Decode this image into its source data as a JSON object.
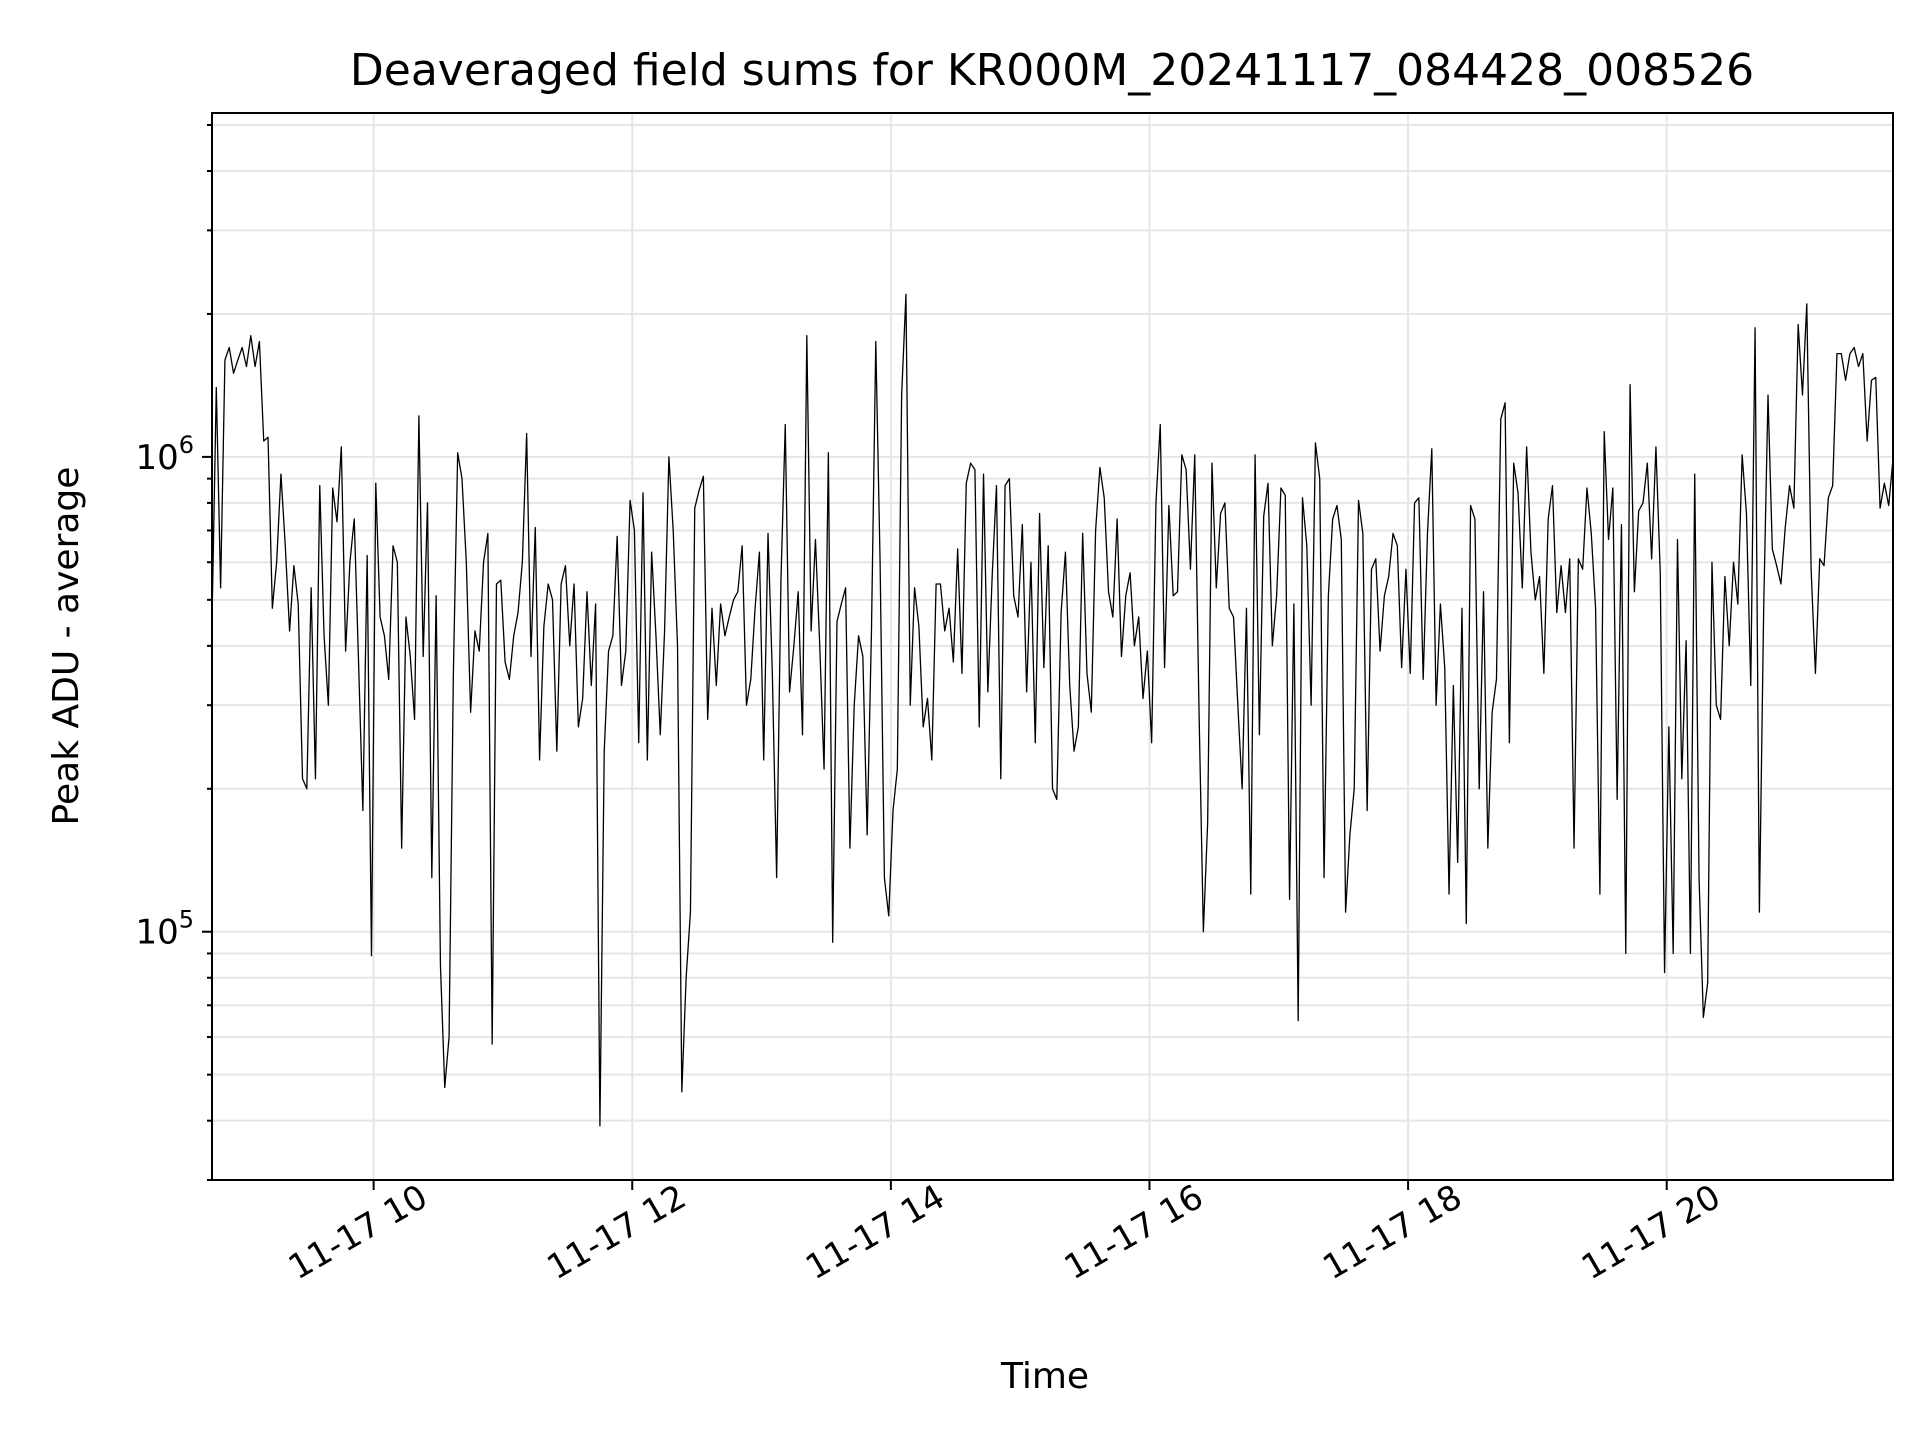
{
  "chart_data": {
    "type": "line",
    "title": "Deaveraged field sums for KR000M_20241117_084428_008526",
    "xlabel": "Time",
    "ylabel": "Peak ADU - average",
    "yscale": "log",
    "xlim": [
      "2024-11-17T08:45",
      "2024-11-17T21:45"
    ],
    "ylim": [
      30000,
      5300000
    ],
    "grid": true,
    "line_color": "#000000",
    "x_ticks": [
      {
        "value": "2024-11-17T10:00",
        "label": "11-17 10"
      },
      {
        "value": "2024-11-17T12:00",
        "label": "11-17 12"
      },
      {
        "value": "2024-11-17T14:00",
        "label": "11-17 14"
      },
      {
        "value": "2024-11-17T16:00",
        "label": "11-17 16"
      },
      {
        "value": "2024-11-17T18:00",
        "label": "11-17 18"
      },
      {
        "value": "2024-11-17T20:00",
        "label": "11-17 20"
      }
    ],
    "y_ticks": [
      {
        "value": 100000,
        "base": "10",
        "exp": "5"
      },
      {
        "value": 1000000,
        "base": "10",
        "exp": "6"
      }
    ],
    "series": [
      {
        "x_start": "2024-11-17T08:45",
        "x_end": "2024-11-17T21:45",
        "values": [
          450000,
          1400000,
          530000,
          1600000,
          1700000,
          1500000,
          1600000,
          1700000,
          1550000,
          1800000,
          1550000,
          1750000,
          1080000,
          1100000,
          480000,
          600000,
          920000,
          650000,
          430000,
          590000,
          490000,
          210000,
          200000,
          530000,
          210000,
          870000,
          420000,
          300000,
          860000,
          730000,
          1050000,
          390000,
          600000,
          740000,
          370000,
          180000,
          620000,
          89000,
          880000,
          460000,
          420000,
          340000,
          650000,
          600000,
          150000,
          460000,
          380000,
          280000,
          1220000,
          380000,
          800000,
          130000,
          510000,
          85000,
          47000,
          60000,
          350000,
          1020000,
          900000,
          600000,
          290000,
          430000,
          390000,
          600000,
          690000,
          58000,
          540000,
          550000,
          370000,
          340000,
          420000,
          470000,
          600000,
          1120000,
          380000,
          710000,
          230000,
          440000,
          540000,
          500000,
          240000,
          540000,
          590000,
          400000,
          540000,
          270000,
          310000,
          520000,
          330000,
          490000,
          39000,
          240000,
          390000,
          420000,
          680000,
          330000,
          390000,
          810000,
          700000,
          250000,
          840000,
          230000,
          630000,
          420000,
          260000,
          430000,
          1000000,
          700000,
          400000,
          46000,
          80000,
          110000,
          780000,
          850000,
          910000,
          280000,
          480000,
          330000,
          490000,
          420000,
          460000,
          500000,
          520000,
          650000,
          300000,
          340000,
          480000,
          630000,
          230000,
          690000,
          350000,
          130000,
          550000,
          1170000,
          320000,
          400000,
          520000,
          260000,
          1800000,
          430000,
          670000,
          400000,
          220000,
          1020000,
          95000,
          450000,
          490000,
          530000,
          150000,
          300000,
          420000,
          380000,
          160000,
          430000,
          1750000,
          600000,
          130000,
          108000,
          180000,
          220000,
          1350000,
          2200000,
          300000,
          530000,
          440000,
          270000,
          310000,
          230000,
          540000,
          540000,
          430000,
          480000,
          370000,
          640000,
          350000,
          880000,
          970000,
          940000,
          270000,
          920000,
          320000,
          560000,
          870000,
          210000,
          870000,
          900000,
          510000,
          460000,
          720000,
          320000,
          600000,
          250000,
          760000,
          360000,
          650000,
          200000,
          190000,
          470000,
          630000,
          330000,
          240000,
          270000,
          690000,
          350000,
          290000,
          700000,
          950000,
          820000,
          520000,
          460000,
          740000,
          380000,
          510000,
          570000,
          400000,
          460000,
          310000,
          390000,
          250000,
          800000,
          1170000,
          360000,
          790000,
          510000,
          520000,
          1010000,
          940000,
          580000,
          1010000,
          290000,
          100000,
          170000,
          970000,
          530000,
          760000,
          800000,
          480000,
          460000,
          300000,
          200000,
          480000,
          120000,
          1010000,
          260000,
          750000,
          880000,
          400000,
          510000,
          860000,
          830000,
          117000,
          490000,
          65000,
          820000,
          650000,
          300000,
          1070000,
          900000,
          130000,
          510000,
          740000,
          790000,
          670000,
          110000,
          160000,
          200000,
          810000,
          690000,
          180000,
          580000,
          610000,
          390000,
          510000,
          560000,
          690000,
          650000,
          360000,
          580000,
          350000,
          800000,
          820000,
          340000,
          690000,
          1040000,
          300000,
          490000,
          360000,
          120000,
          330000,
          140000,
          480000,
          104000,
          790000,
          740000,
          200000,
          520000,
          150000,
          290000,
          340000,
          1200000,
          1300000,
          250000,
          970000,
          840000,
          530000,
          1050000,
          630000,
          500000,
          560000,
          350000,
          740000,
          870000,
          470000,
          590000,
          470000,
          610000,
          150000,
          610000,
          580000,
          860000,
          690000,
          480000,
          120000,
          1130000,
          670000,
          860000,
          190000,
          720000,
          90000,
          1420000,
          520000,
          770000,
          800000,
          970000,
          610000,
          1050000,
          570000,
          82000,
          270000,
          90000,
          670000,
          210000,
          410000,
          90000,
          920000,
          130000,
          66000,
          78000,
          600000,
          300000,
          280000,
          560000,
          400000,
          600000,
          490000,
          1010000,
          760000,
          330000,
          1870000,
          110000,
          480000,
          1350000,
          640000,
          590000,
          540000,
          710000,
          870000,
          780000,
          1900000,
          1350000,
          2100000,
          580000,
          350000,
          610000,
          590000,
          820000,
          870000,
          1650000,
          1650000,
          1450000,
          1650000,
          1700000,
          1550000,
          1650000,
          1080000,
          1450000,
          1470000,
          780000,
          880000,
          790000,
          990000
        ]
      }
    ]
  }
}
